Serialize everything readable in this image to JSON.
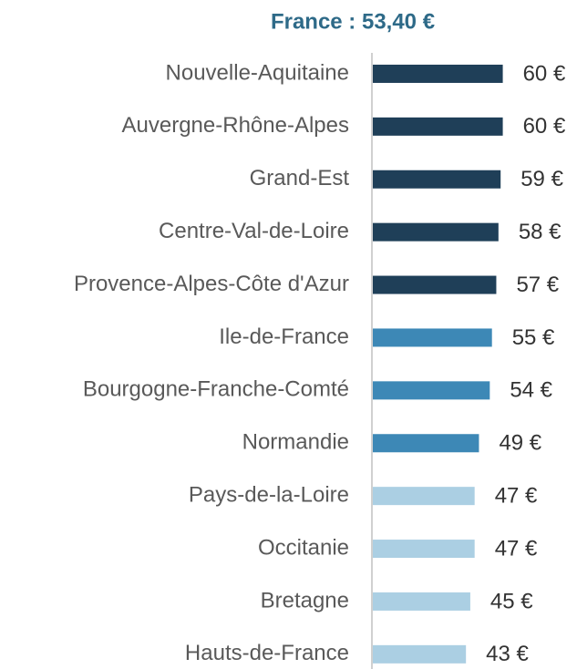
{
  "chart_data": {
    "type": "hbar",
    "title": "France : 53,40 €",
    "categories": [
      "Nouvelle-Aquitaine",
      "Auvergne-Rhône-Alpes",
      "Grand-Est",
      "Centre-Val-de-Loire",
      "Provence-Alpes-Côte d'Azur",
      "Ile-de-France",
      "Bourgogne-Franche-Comté",
      "Normandie",
      "Pays-de-la-Loire",
      "Occitanie",
      "Bretagne",
      "Hauts-de-France"
    ],
    "values": [
      60,
      60,
      59,
      58,
      57,
      55,
      54,
      49,
      47,
      47,
      45,
      43
    ],
    "value_labels": [
      "60 €",
      "60 €",
      "59 €",
      "58 €",
      "57 €",
      "55 €",
      "54 €",
      "49 €",
      "47 €",
      "47 €",
      "45 €",
      "43 €"
    ],
    "colors": [
      "#1f3f58",
      "#1f3f58",
      "#1f3f58",
      "#1f3f58",
      "#1f3f58",
      "#3d88b6",
      "#3d88b6",
      "#3d88b6",
      "#abcfe3",
      "#abcfe3",
      "#abcfe3",
      "#abcfe3"
    ],
    "xlim": [
      0,
      93
    ]
  }
}
